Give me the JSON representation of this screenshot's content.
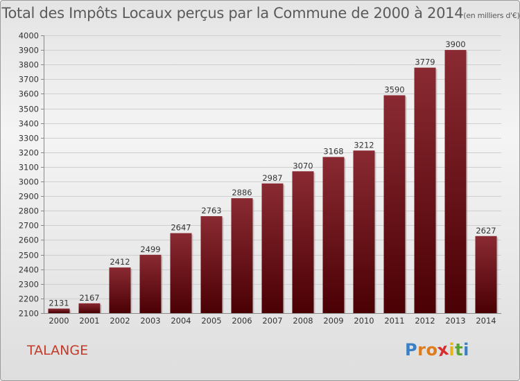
{
  "chart_data": {
    "type": "bar",
    "title": "Total des Impôts Locaux perçus par la Commune de 2000 à 2014",
    "unit": "(en milliers d'€)",
    "categories": [
      "2000",
      "2001",
      "2002",
      "2003",
      "2004",
      "2005",
      "2006",
      "2007",
      "2008",
      "2009",
      "2010",
      "2011",
      "2012",
      "2013",
      "2014"
    ],
    "values": [
      2131,
      2167,
      2412,
      2499,
      2647,
      2763,
      2886,
      2987,
      3070,
      3168,
      3212,
      3590,
      3779,
      3900,
      2627
    ],
    "ylim": [
      2100,
      4000
    ],
    "yticks": [
      2100,
      2200,
      2300,
      2400,
      2500,
      2600,
      2700,
      2800,
      2900,
      3000,
      3100,
      3200,
      3300,
      3400,
      3500,
      3600,
      3700,
      3800,
      3900,
      4000
    ],
    "grid": true,
    "xlabel": "",
    "ylabel": ""
  },
  "commune": "TALANGE",
  "logo": {
    "letters": [
      "P",
      "r",
      "o",
      "x",
      "i",
      "t",
      "i"
    ],
    "colors": [
      "#3b7fc4",
      "#e07b1a",
      "#e07b1a",
      "#d62e2e",
      "#e6b319",
      "#5aa332",
      "#3b7fc4"
    ]
  },
  "colors": {
    "bar_top": "#8a2a32",
    "bar_bottom": "#4a0004"
  }
}
